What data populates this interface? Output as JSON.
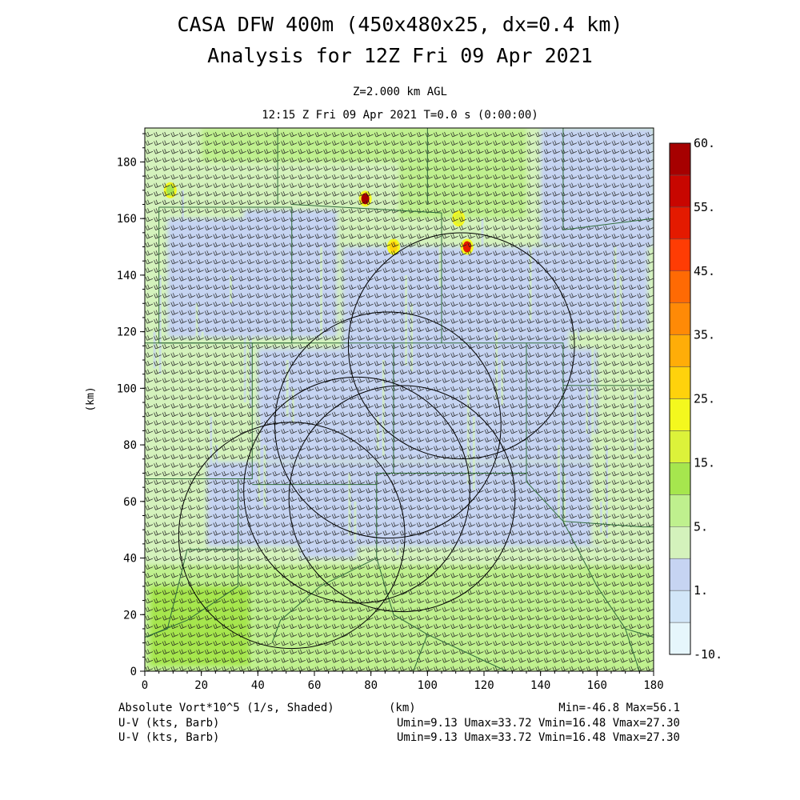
{
  "title_line1": "CASA DFW 400m (450x480x25, dx=0.4 km)",
  "title_line2": "Analysis for 12Z Fri 09 Apr 2021",
  "level_label": "Z=2.000 km AGL",
  "time_label": "12:15 Z Fri 09 Apr 2021   T=0.0 s (0:00:00)",
  "footer": {
    "field1": "Absolute Vort*10^5 (1/s, Shaded)",
    "field2": "U-V (kts, Barb)",
    "field3": "U-V (kts, Barb)",
    "xunit": "(km)",
    "minmax": "Min=-46.8 Max=56.1",
    "uv_stats1": "Umin=9.13 Umax=33.72 Vmin=16.48 Vmax=27.30",
    "uv_stats2": "Umin=9.13 Umax=33.72 Vmin=16.48 Vmax=27.30"
  },
  "chart_data": {
    "type": "heatmap",
    "xlabel": "",
    "ylabel": "(km)",
    "xlim": [
      0,
      180
    ],
    "ylim": [
      0,
      192
    ],
    "x_ticks": [
      0,
      20,
      40,
      60,
      80,
      100,
      120,
      140,
      160,
      180
    ],
    "y_ticks": [
      0,
      20,
      40,
      60,
      80,
      100,
      120,
      140,
      160,
      180
    ],
    "colorbar": {
      "levels": [
        -10,
        1,
        5,
        15,
        25,
        35,
        45,
        55,
        60
      ],
      "tick_labels": [
        "-10.",
        "1.",
        "5.",
        "15.",
        "25.",
        "35.",
        "45.",
        "55.",
        "60."
      ],
      "colors": [
        "#e6f6fc",
        "#d2e6f8",
        "#c6d4f2",
        "#d4f2bc",
        "#bff08e",
        "#a6e64e",
        "#dcf23a",
        "#f4f81e",
        "#ffd20c",
        "#ffad08",
        "#ff8a06",
        "#ff6a04",
        "#ff3c04",
        "#e41a00",
        "#c80600",
        "#a60000"
      ]
    },
    "radar_rings": [
      {
        "cx": 52,
        "cy": 48,
        "r": 40
      },
      {
        "cx": 75,
        "cy": 64,
        "r": 40
      },
      {
        "cx": 91,
        "cy": 61,
        "r": 40
      },
      {
        "cx": 86,
        "cy": 87,
        "r": 40
      },
      {
        "cx": 112,
        "cy": 115,
        "r": 40
      }
    ],
    "hotspots": [
      {
        "x": 78,
        "y": 167,
        "value": 56.1
      },
      {
        "x": 88,
        "y": 150,
        "value": 25
      },
      {
        "x": 111,
        "y": 160,
        "value": 20
      },
      {
        "x": 114,
        "y": 150,
        "value": 48
      },
      {
        "x": 9,
        "y": 170,
        "value": 12
      }
    ],
    "wind_barbs": {
      "u_range": [
        9.13,
        33.72
      ],
      "v_range": [
        16.48,
        27.3
      ],
      "units": "kts"
    }
  }
}
